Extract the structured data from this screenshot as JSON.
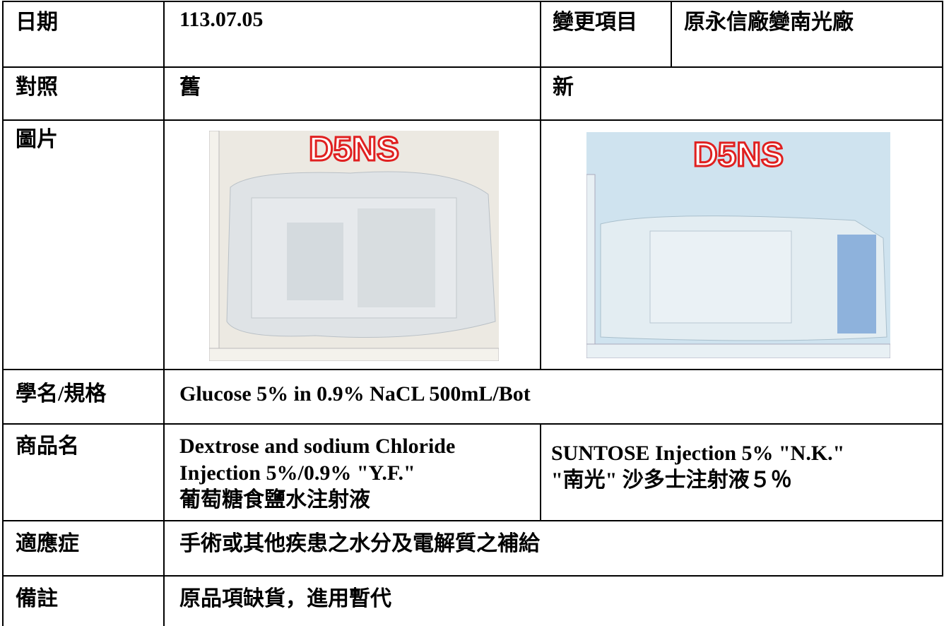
{
  "rows": [
    [
      "日期",
      "113.07.05",
      "變更項目",
      "原永信廠變南光廠"
    ],
    [
      "對照",
      "舊",
      "新"
    ],
    [
      "圖片"
    ],
    [
      "學名/規格",
      "Glucose 5% in 0.9% NaCL 500mL/Bot"
    ],
    [
      "商品名",
      [
        "Dextrose and sodium Chloride",
        "Injection 5%/0.9% \"Y.F.\"",
        "葡萄糖食鹽水注射液"
      ],
      [
        "SUNTOSE Injection 5% \"N.K.\"",
        "\"南光\" 沙多士注射液５％"
      ]
    ],
    [
      "適應症",
      "手術或其他疾患之水分及電解質之補給"
    ],
    [
      "備註",
      "原品項缺貨，進用暫代"
    ]
  ],
  "images": [
    {
      "label": "D5NS"
    },
    {
      "label": "D5NS"
    }
  ]
}
